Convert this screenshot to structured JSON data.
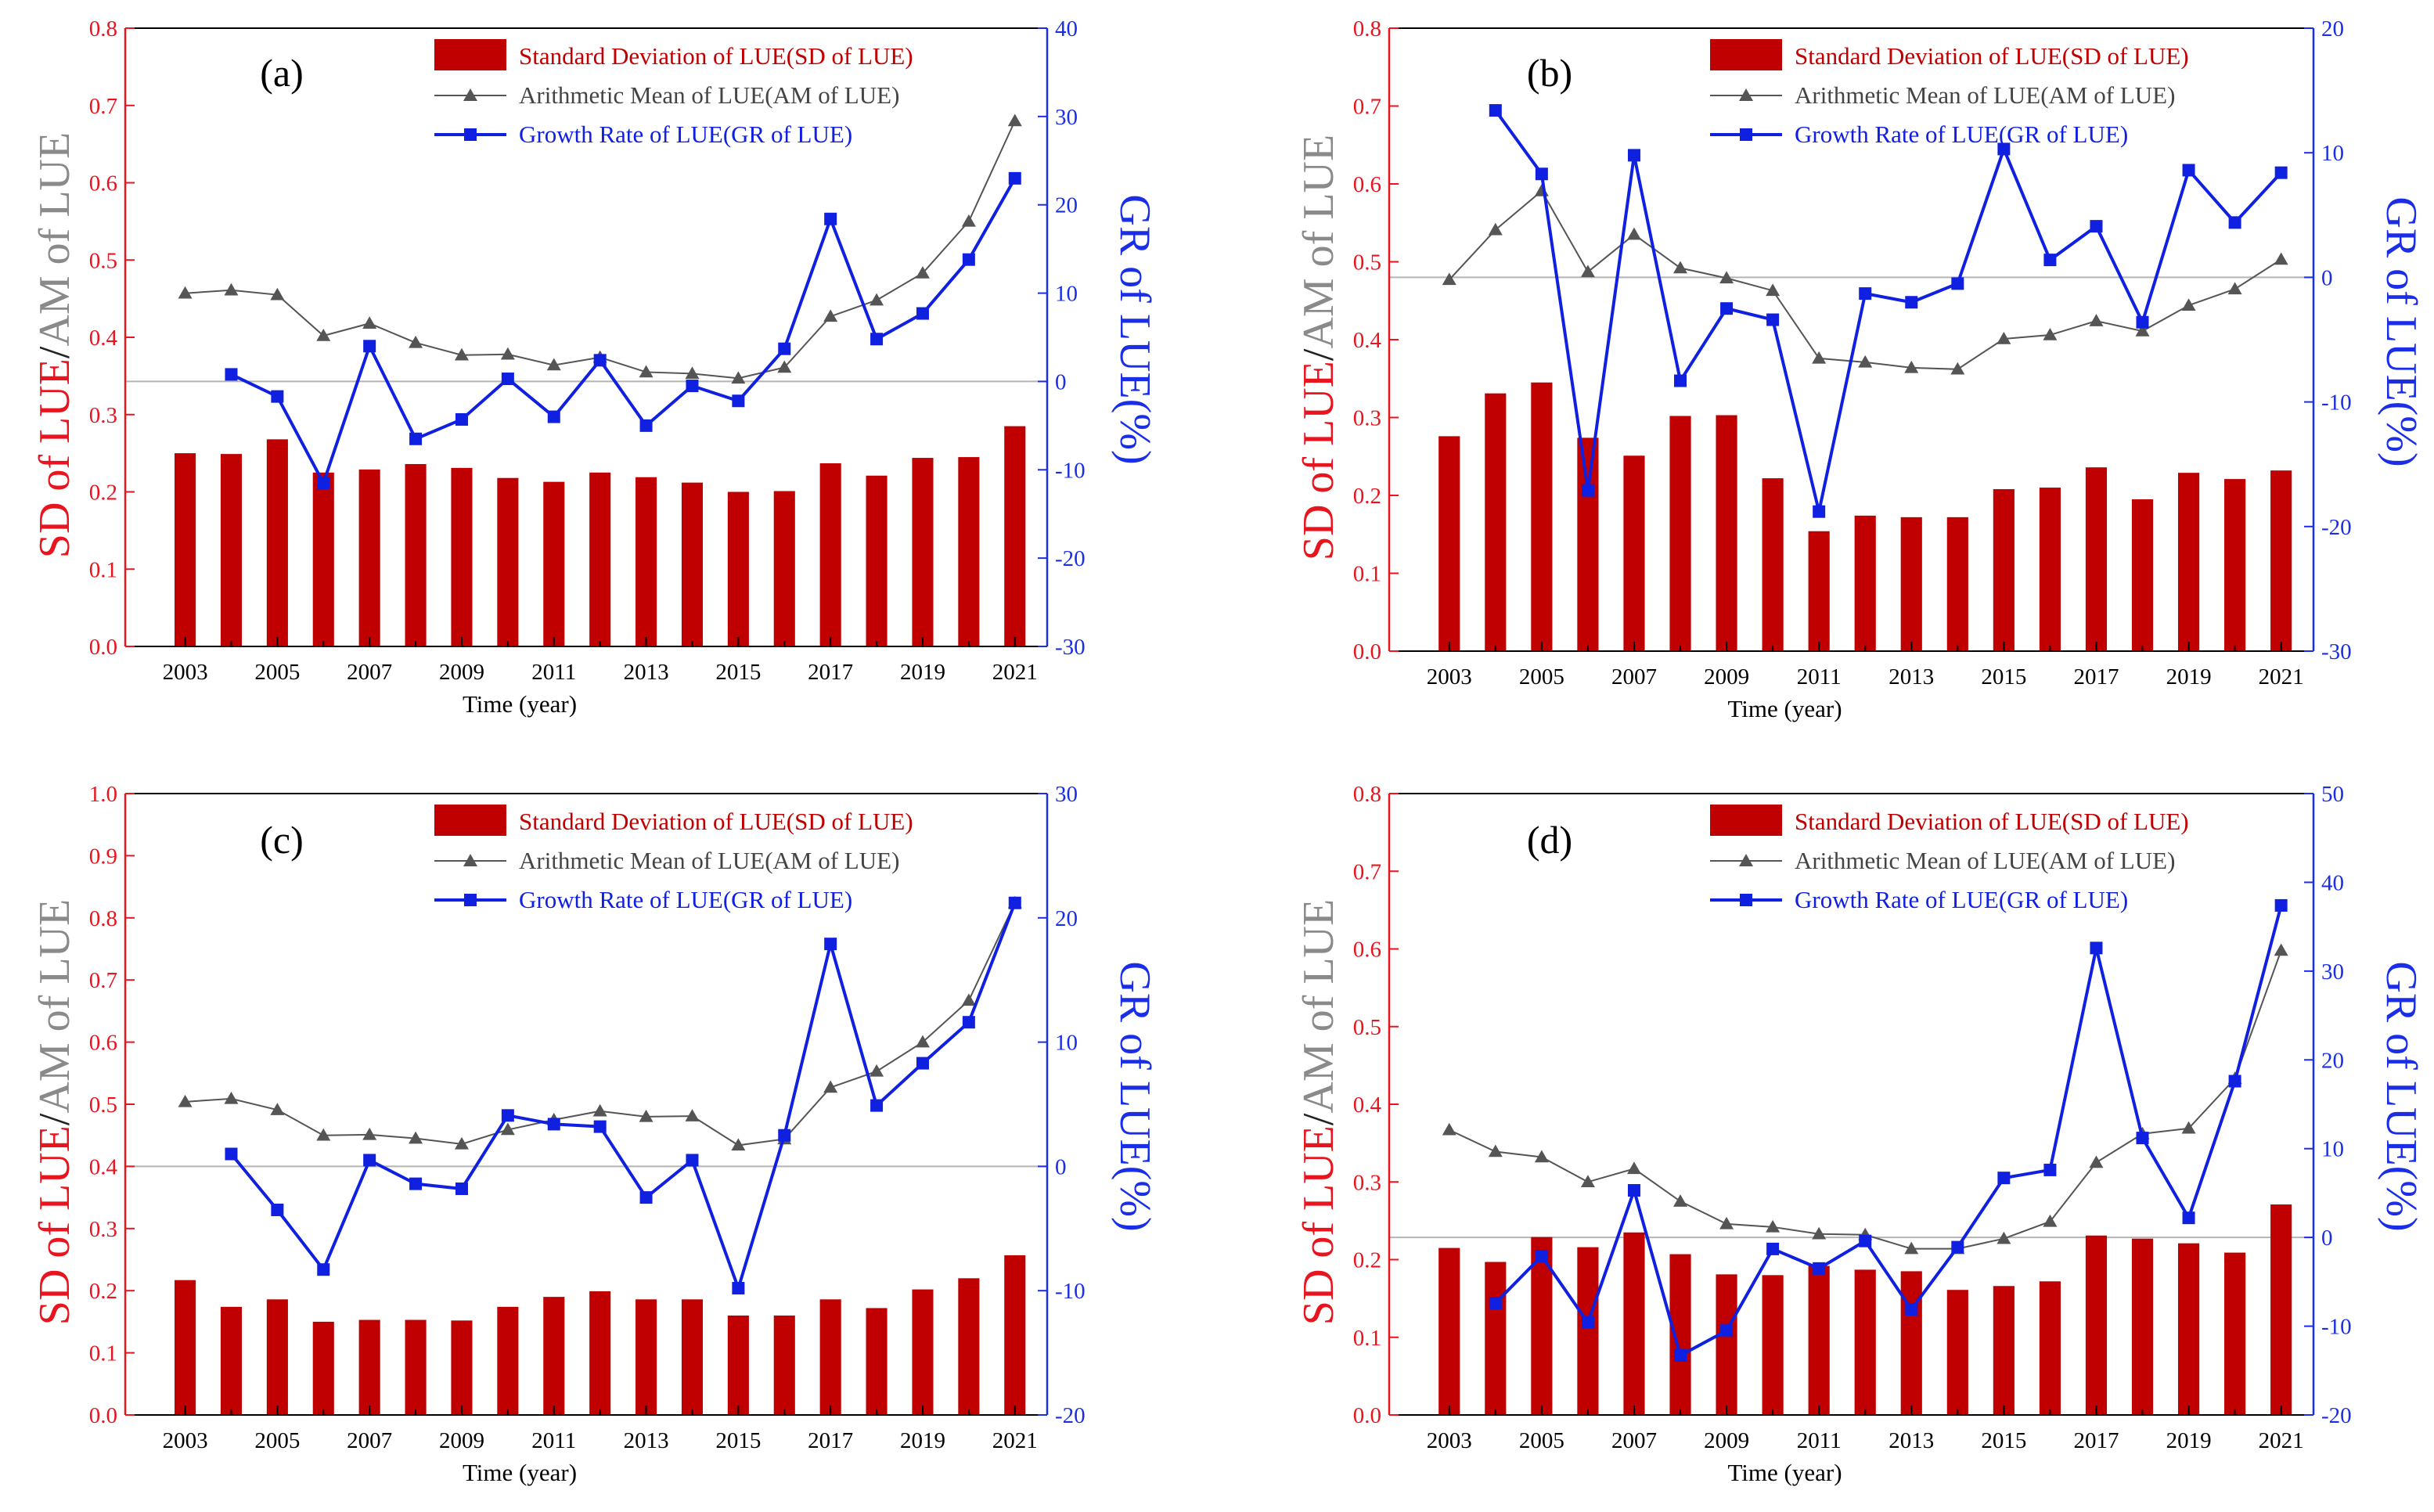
{
  "figure": {
    "legend_labels": {
      "sd": "Standard Deviation of LUE(SD of LUE)",
      "am": "Arithmetic Mean of LUE(AM of LUE)",
      "gr": "Growth Rate of LUE(GR of LUE)"
    },
    "colors": {
      "sd": "#c00000",
      "am": "#555555",
      "gr": "#1020e0",
      "left_axis": "#e8141e",
      "right_axis": "#1a2ee8",
      "ref_line": "#b4b4b4"
    }
  },
  "chart_data": [
    {
      "type": "bar",
      "panel_label": "(a)",
      "xlabel": "Time (year)",
      "ylabel_sd": "SD of LUE",
      "ylabel_sep": "/",
      "ylabel_am": "AM of LUE",
      "y2label": "GR of LUE(%)",
      "x": [
        2003,
        2004,
        2005,
        2006,
        2007,
        2008,
        2009,
        2010,
        2011,
        2012,
        2013,
        2014,
        2015,
        2016,
        2017,
        2018,
        2019,
        2020,
        2021
      ],
      "xtick_labels": [
        "2003",
        "2005",
        "2007",
        "2009",
        "2011",
        "2013",
        "2015",
        "2017",
        "2019",
        "2021"
      ],
      "ylim": [
        0,
        0.8
      ],
      "yticks": [
        "0.0",
        "0.1",
        "0.2",
        "0.3",
        "0.4",
        "0.5",
        "0.6",
        "0.7",
        "0.8"
      ],
      "y2lim": [
        -30,
        40
      ],
      "y2ticks": [
        "-30",
        "-20",
        "-10",
        "0",
        "10",
        "20",
        "30",
        "40"
      ],
      "series": [
        {
          "name": "Standard Deviation of LUE(SD of LUE)",
          "kind": "bar",
          "axis": "left",
          "values": [
            0.25,
            0.249,
            0.268,
            0.225,
            0.229,
            0.236,
            0.231,
            0.218,
            0.213,
            0.225,
            0.219,
            0.212,
            0.2,
            0.201,
            0.237,
            0.221,
            0.244,
            0.245,
            0.285
          ]
        },
        {
          "name": "Arithmetic Mean of LUE(AM of LUE)",
          "kind": "line-triangle",
          "axis": "left",
          "values": [
            0.457,
            0.461,
            0.455,
            0.402,
            0.418,
            0.393,
            0.377,
            0.378,
            0.364,
            0.374,
            0.355,
            0.353,
            0.347,
            0.361,
            0.427,
            0.448,
            0.483,
            0.55,
            0.68
          ]
        },
        {
          "name": "Growth Rate of LUE(GR of LUE)",
          "kind": "line-square",
          "axis": "right",
          "values": [
            null,
            0.8,
            -1.7,
            -11.5,
            4.0,
            -6.5,
            -4.3,
            0.3,
            -4.0,
            2.4,
            -5.0,
            -0.5,
            -2.2,
            3.7,
            18.4,
            4.8,
            7.7,
            13.8,
            23.0
          ]
        }
      ]
    },
    {
      "type": "bar",
      "panel_label": "(b)",
      "xlabel": "Time (year)",
      "ylabel_sd": "SD of LUE",
      "ylabel_sep": "/",
      "ylabel_am": "AM of LUE",
      "y2label": "GR of LUE(%)",
      "x": [
        2003,
        2004,
        2005,
        2006,
        2007,
        2008,
        2009,
        2010,
        2011,
        2012,
        2013,
        2014,
        2015,
        2016,
        2017,
        2018,
        2019,
        2020,
        2021
      ],
      "xtick_labels": [
        "2003",
        "2005",
        "2007",
        "2009",
        "2011",
        "2013",
        "2015",
        "2017",
        "2019",
        "2021"
      ],
      "ylim": [
        0,
        0.8
      ],
      "yticks": [
        "0.0",
        "0.1",
        "0.2",
        "0.3",
        "0.4",
        "0.5",
        "0.6",
        "0.7",
        "0.8"
      ],
      "y2lim": [
        -30,
        20
      ],
      "y2ticks": [
        "-30",
        "-20",
        "-10",
        "0",
        "10",
        "20"
      ],
      "series": [
        {
          "name": "Standard Deviation of LUE(SD of LUE)",
          "kind": "bar",
          "axis": "left",
          "values": [
            0.276,
            0.331,
            0.345,
            0.274,
            0.251,
            0.302,
            0.303,
            0.222,
            0.154,
            0.174,
            0.172,
            0.172,
            0.208,
            0.21,
            0.236,
            0.195,
            0.229,
            0.221,
            0.232
          ]
        },
        {
          "name": "Arithmetic Mean of LUE(AM of LUE)",
          "kind": "line-triangle",
          "axis": "left",
          "values": [
            0.477,
            0.541,
            0.591,
            0.487,
            0.535,
            0.492,
            0.479,
            0.463,
            0.376,
            0.371,
            0.364,
            0.362,
            0.401,
            0.406,
            0.424,
            0.411,
            0.444,
            0.465,
            0.503
          ]
        },
        {
          "name": "Growth Rate of LUE(GR of LUE)",
          "kind": "line-square",
          "axis": "right",
          "values": [
            null,
            13.4,
            8.3,
            -17.1,
            9.8,
            -8.3,
            -2.5,
            -3.4,
            -18.8,
            -1.3,
            -2.0,
            -0.5,
            10.3,
            1.4,
            4.1,
            -3.6,
            8.6,
            4.4,
            8.4
          ]
        }
      ]
    },
    {
      "type": "bar",
      "panel_label": "(c)",
      "xlabel": "Time (year)",
      "ylabel_sd": "SD of LUE",
      "ylabel_sep": "/",
      "ylabel_am": "AM of LUE",
      "y2label": "GR of LUE(%)",
      "x": [
        2003,
        2004,
        2005,
        2006,
        2007,
        2008,
        2009,
        2010,
        2011,
        2012,
        2013,
        2014,
        2015,
        2016,
        2017,
        2018,
        2019,
        2020,
        2021
      ],
      "xtick_labels": [
        "2003",
        "2005",
        "2007",
        "2009",
        "2011",
        "2013",
        "2015",
        "2017",
        "2019",
        "2021"
      ],
      "ylim": [
        0,
        1.0
      ],
      "yticks": [
        "0.0",
        "0.1",
        "0.2",
        "0.3",
        "0.4",
        "0.5",
        "0.6",
        "0.7",
        "0.8",
        "0.9",
        "1.0"
      ],
      "y2lim": [
        -20,
        30
      ],
      "y2ticks": [
        "-20",
        "-10",
        "0",
        "10",
        "20",
        "30"
      ],
      "series": [
        {
          "name": "Standard Deviation of LUE(SD of LUE)",
          "kind": "bar",
          "axis": "left",
          "values": [
            0.217,
            0.174,
            0.186,
            0.15,
            0.153,
            0.153,
            0.152,
            0.174,
            0.19,
            0.199,
            0.186,
            0.186,
            0.16,
            0.16,
            0.186,
            0.172,
            0.202,
            0.22,
            0.257
          ]
        },
        {
          "name": "Arithmetic Mean of LUE(AM of LUE)",
          "kind": "line-triangle",
          "axis": "left",
          "values": [
            0.504,
            0.509,
            0.491,
            0.45,
            0.451,
            0.445,
            0.436,
            0.459,
            0.475,
            0.489,
            0.48,
            0.481,
            0.434,
            0.444,
            0.527,
            0.553,
            0.6,
            0.667,
            0.824
          ]
        },
        {
          "name": "Growth Rate of LUE(GR of LUE)",
          "kind": "line-square",
          "axis": "right",
          "values": [
            null,
            1.0,
            -3.5,
            -8.3,
            0.5,
            -1.4,
            -1.8,
            4.1,
            3.4,
            3.2,
            -2.5,
            0.5,
            -9.8,
            2.5,
            17.9,
            4.9,
            8.3,
            11.6,
            21.2
          ]
        }
      ]
    },
    {
      "type": "bar",
      "panel_label": "(d)",
      "xlabel": "Time (year)",
      "ylabel_sd": "SD of LUE",
      "ylabel_sep": "/",
      "ylabel_am": "AM of LUE",
      "y2label": "GR of LUE(%)",
      "x": [
        2003,
        2004,
        2005,
        2006,
        2007,
        2008,
        2009,
        2010,
        2011,
        2012,
        2013,
        2014,
        2015,
        2016,
        2017,
        2018,
        2019,
        2020,
        2021
      ],
      "xtick_labels": [
        "2003",
        "2005",
        "2007",
        "2009",
        "2011",
        "2013",
        "2015",
        "2017",
        "2019",
        "2021"
      ],
      "ylim": [
        0,
        0.8
      ],
      "yticks": [
        "0.0",
        "0.1",
        "0.2",
        "0.3",
        "0.4",
        "0.5",
        "0.6",
        "0.7",
        "0.8"
      ],
      "y2lim": [
        -20,
        50
      ],
      "y2ticks": [
        "-20",
        "-10",
        "0",
        "10",
        "20",
        "30",
        "40",
        "50"
      ],
      "series": [
        {
          "name": "Standard Deviation of LUE(SD of LUE)",
          "kind": "bar",
          "axis": "left",
          "values": [
            0.215,
            0.197,
            0.229,
            0.216,
            0.235,
            0.207,
            0.181,
            0.18,
            0.192,
            0.187,
            0.185,
            0.161,
            0.166,
            0.172,
            0.231,
            0.227,
            0.221,
            0.209,
            0.271
          ]
        },
        {
          "name": "Arithmetic Mean of LUE(AM of LUE)",
          "kind": "line-triangle",
          "axis": "left",
          "values": [
            0.367,
            0.339,
            0.332,
            0.3,
            0.317,
            0.275,
            0.246,
            0.242,
            0.233,
            0.232,
            0.214,
            0.214,
            0.227,
            0.249,
            0.325,
            0.362,
            0.369,
            0.433,
            0.598
          ]
        },
        {
          "name": "Growth Rate of LUE(GR of LUE)",
          "kind": "line-square",
          "axis": "right",
          "values": [
            null,
            -7.4,
            -2.1,
            -9.6,
            5.3,
            -13.3,
            -10.5,
            -1.3,
            -3.5,
            -0.4,
            -8.1,
            -1.1,
            6.7,
            7.6,
            32.6,
            11.2,
            2.2,
            17.6,
            37.4
          ]
        }
      ]
    }
  ]
}
